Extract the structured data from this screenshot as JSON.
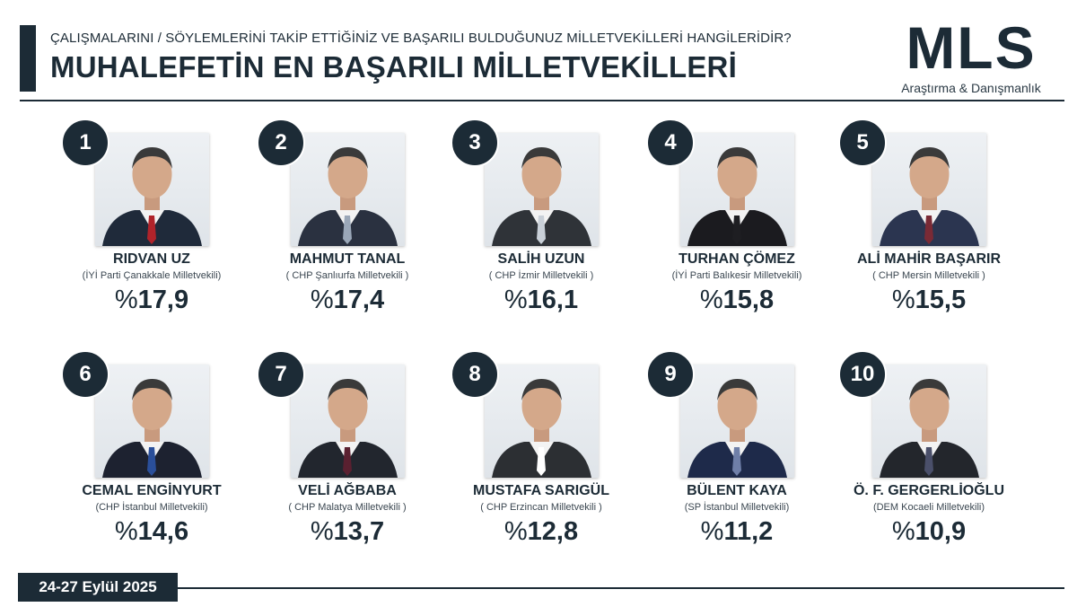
{
  "header": {
    "subtitle": "ÇALIŞMALARINI / SÖYLEMLERİNİ TAKİP ETTİĞİNİZ VE BAŞARILI BULDUĞUNUZ MİLLETVEKİLLERİ HANGİLERİDİR?",
    "title": "MUHALEFETİN EN BAŞARILI MİLLETVEKİLLERİ"
  },
  "logo": {
    "main": "MLS",
    "sub": "Araştırma & Danışmanlık"
  },
  "date": "24-27 Eylül 2025",
  "colors": {
    "navy": "#1c2b36",
    "background": "#ffffff"
  },
  "ranking": [
    {
      "rank": "1",
      "name": "RIDVAN UZ",
      "party": "(İYİ Parti Çanakkale Milletvekili)",
      "pct_symbol": "%",
      "pct_value": "17,9",
      "percent": 17.9,
      "tie": "#b0232a",
      "suit": "#1f2a3a"
    },
    {
      "rank": "2",
      "name": "MAHMUT TANAL",
      "party": "( CHP Şanlıurfa Milletvekili )",
      "pct_symbol": "%",
      "pct_value": "17,4",
      "percent": 17.4,
      "tie": "#9aa7b8",
      "suit": "#2a3140"
    },
    {
      "rank": "3",
      "name": "SALİH UZUN",
      "party": "( CHP İzmir Milletvekili )",
      "pct_symbol": "%",
      "pct_value": "16,1",
      "percent": 16.1,
      "tie": "#c9d0d8",
      "suit": "#2f3338"
    },
    {
      "rank": "4",
      "name": "TURHAN ÇÖMEZ",
      "party": "(İYİ Parti Balıkesir Milletvekili)",
      "pct_symbol": "%",
      "pct_value": "15,8",
      "percent": 15.8,
      "tie": "#1e1e22",
      "suit": "#1b1b1f"
    },
    {
      "rank": "5",
      "name": "ALİ MAHİR BAŞARIR",
      "party": "( CHP Mersin Milletvekili )",
      "pct_symbol": "%",
      "pct_value": "15,5",
      "percent": 15.5,
      "tie": "#7a2a35",
      "suit": "#2b3550"
    },
    {
      "rank": "6",
      "name": "CEMAL ENGİNYURT",
      "party": "(CHP İstanbul Milletvekili)",
      "pct_symbol": "%",
      "pct_value": "14,6",
      "percent": 14.6,
      "tie": "#2a4f9a",
      "suit": "#1d2230"
    },
    {
      "rank": "7",
      "name": "VELİ AĞBABA",
      "party": "( CHP Malatya Milletvekili )",
      "pct_symbol": "%",
      "pct_value": "13,7",
      "percent": 13.7,
      "tie": "#5a2030",
      "suit": "#22262e"
    },
    {
      "rank": "8",
      "name": "MUSTAFA SARIGÜL",
      "party": "( CHP Erzincan Milletvekili )",
      "pct_symbol": "%",
      "pct_value": "12,8",
      "percent": 12.8,
      "tie": "#ffffff",
      "suit": "#2c2f33"
    },
    {
      "rank": "9",
      "name": "BÜLENT KAYA",
      "party": "(SP İstanbul Milletvekili)",
      "pct_symbol": "%",
      "pct_value": "11,2",
      "percent": 11.2,
      "tie": "#6f7fa8",
      "suit": "#1e2a4a"
    },
    {
      "rank": "10",
      "name": "Ö. F. GERGERLİOĞLU",
      "party": "(DEM Kocaeli Milletvekili)",
      "pct_symbol": "%",
      "pct_value": "10,9",
      "percent": 10.9,
      "tie": "#4a4f6a",
      "suit": "#23262c"
    }
  ]
}
